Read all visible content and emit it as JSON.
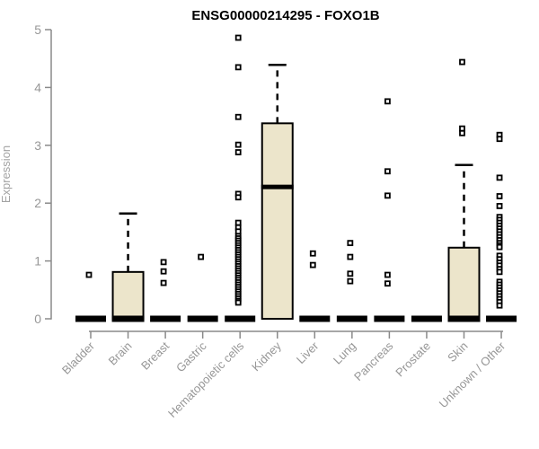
{
  "chart_data": {
    "type": "boxplot",
    "title": "ENSG00000214295 - FOXO1B",
    "ylabel": "Expression",
    "xlabel": "",
    "ylim": [
      0,
      5
    ],
    "yticks": [
      0,
      1,
      2,
      3,
      4,
      5
    ],
    "grid": false,
    "legend": null,
    "colors": {
      "box_fill": "#ece5cb",
      "box_stroke": "#000000",
      "median_color": "#000000",
      "outlier_color": "#000000",
      "axis_color": "#8a8a8a",
      "tick_label_color": "#979797",
      "axis_label_color": "#a3a3a3",
      "title_color": "#000000",
      "background": "#ffffff"
    },
    "categories": [
      "Bladder",
      "Brain",
      "Breast",
      "Gastric",
      "Hematopoietic cells",
      "Kidney",
      "Liver",
      "Lung",
      "Pancreas",
      "Prostate",
      "Skin",
      "Unknown / Other"
    ],
    "series": [
      {
        "name": "Bladder",
        "q1": 0,
        "median": 0,
        "q3": 0,
        "whisker_low": 0,
        "whisker_high": 0,
        "outliers": [
          0.76
        ]
      },
      {
        "name": "Brain",
        "q1": 0,
        "median": 0,
        "q3": 0.81,
        "whisker_low": 0,
        "whisker_high": 1.82,
        "outliers": []
      },
      {
        "name": "Breast",
        "q1": 0,
        "median": 0,
        "q3": 0,
        "whisker_low": 0,
        "whisker_high": 0,
        "outliers": [
          0.98,
          0.82,
          0.62
        ]
      },
      {
        "name": "Gastric",
        "q1": 0,
        "median": 0,
        "q3": 0,
        "whisker_low": 0,
        "whisker_high": 0,
        "outliers": [
          1.07
        ]
      },
      {
        "name": "Hematopoietic cells",
        "q1": 0,
        "median": 0,
        "q3": 0,
        "whisker_low": 0,
        "whisker_high": 0,
        "outliers": [
          4.86,
          4.35,
          3.49,
          3.01,
          2.88,
          2.16,
          2.1,
          1.66,
          1.58,
          1.51,
          1.43,
          1.39,
          1.35,
          1.31,
          1.27,
          1.23,
          1.19,
          1.15,
          1.11,
          1.07,
          1.03,
          0.99,
          0.95,
          0.91,
          0.87,
          0.83,
          0.79,
          0.75,
          0.71,
          0.67,
          0.63,
          0.59,
          0.55,
          0.51,
          0.47,
          0.43,
          0.39,
          0.35,
          0.31,
          0.28
        ]
      },
      {
        "name": "Kidney",
        "q1": 0,
        "median": 2.28,
        "q3": 3.38,
        "whisker_low": 0,
        "whisker_high": 4.39,
        "outliers": []
      },
      {
        "name": "Liver",
        "q1": 0,
        "median": 0,
        "q3": 0,
        "whisker_low": 0,
        "whisker_high": 0,
        "outliers": [
          1.13,
          0.93
        ]
      },
      {
        "name": "Lung",
        "q1": 0,
        "median": 0,
        "q3": 0,
        "whisker_low": 0,
        "whisker_high": 0,
        "outliers": [
          1.31,
          1.07,
          0.78,
          0.65
        ]
      },
      {
        "name": "Pancreas",
        "q1": 0,
        "median": 0,
        "q3": 0,
        "whisker_low": 0,
        "whisker_high": 0,
        "outliers": [
          3.76,
          2.55,
          2.13,
          0.76,
          0.61
        ]
      },
      {
        "name": "Prostate",
        "q1": 0,
        "median": 0,
        "q3": 0,
        "whisker_low": 0,
        "whisker_high": 0,
        "outliers": []
      },
      {
        "name": "Skin",
        "q1": 0,
        "median": 0,
        "q3": 1.23,
        "whisker_low": 0,
        "whisker_high": 2.66,
        "outliers": [
          4.44,
          3.29,
          3.21
        ]
      },
      {
        "name": "Unknown / Other",
        "q1": 0,
        "median": 0,
        "q3": 0,
        "whisker_low": 0,
        "whisker_high": 0,
        "outliers": [
          3.18,
          3.11,
          2.44,
          2.12,
          1.95,
          1.76,
          1.71,
          1.66,
          1.61,
          1.56,
          1.51,
          1.46,
          1.41,
          1.36,
          1.31,
          1.27,
          1.24,
          1.09,
          1.03,
          0.97,
          0.92,
          0.86,
          0.81,
          0.64,
          0.59,
          0.54,
          0.49,
          0.44,
          0.39,
          0.34,
          0.29,
          0.23
        ]
      }
    ]
  }
}
